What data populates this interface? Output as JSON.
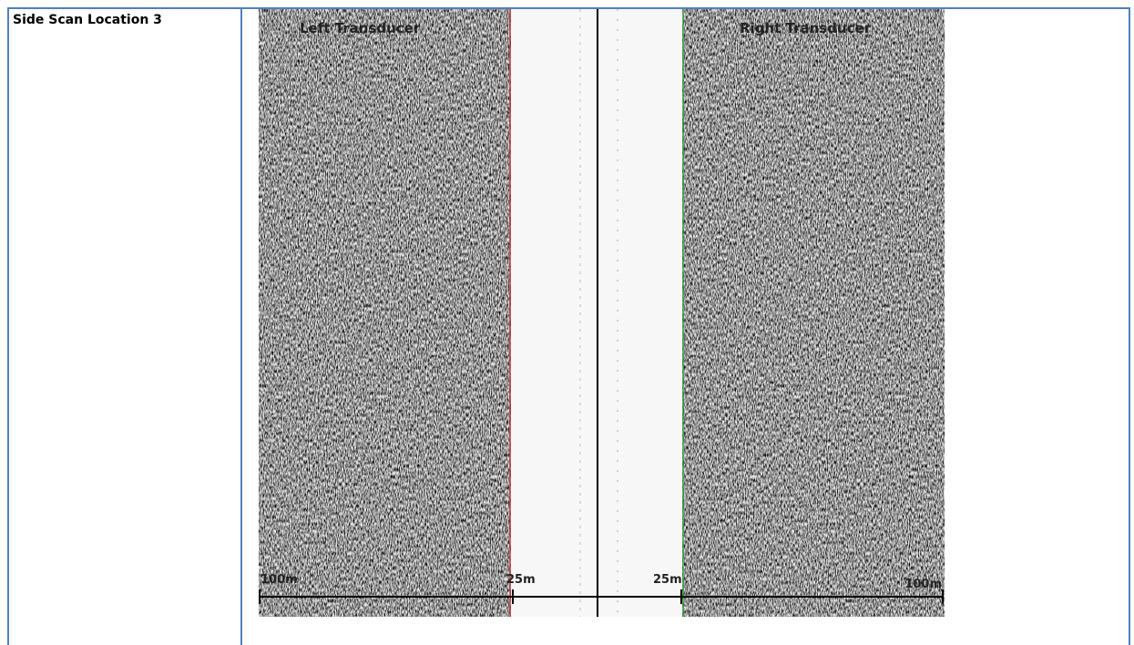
{
  "table": {
    "rows": [
      [
        "Side Scan Location 3"
      ]
    ]
  },
  "image": {
    "labels": {
      "left": "Left Transducer",
      "right": "Right Transducer"
    },
    "scale": {
      "left_far": "100m",
      "left_near": "25m",
      "right_near": "25m",
      "right_far": "100m"
    }
  }
}
